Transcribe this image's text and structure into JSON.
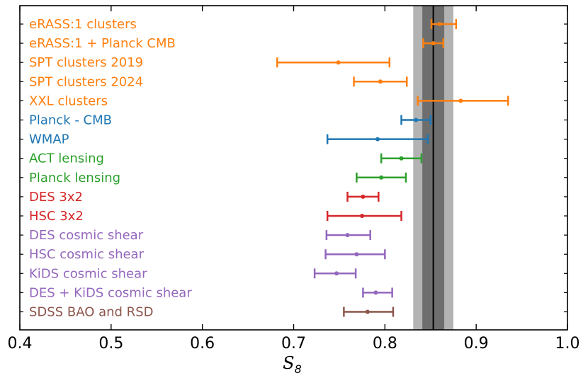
{
  "chart_data": {
    "type": "errorbar",
    "title": "",
    "xlabel": "S",
    "xlabel_subscript": "8",
    "ylabel": "",
    "xlim": [
      0.4,
      1.0
    ],
    "x_ticks": [
      "0.4",
      "0.5",
      "0.6",
      "0.7",
      "0.8",
      "0.9",
      "1.0"
    ],
    "grid": false,
    "reference_band": {
      "center": 0.853,
      "inner": [
        0.841,
        0.865
      ],
      "outer": [
        0.831,
        0.875
      ]
    },
    "colors": {
      "clusters": "#ff7f0e",
      "cmb": "#1f77b4",
      "lensing": "#2ca02c",
      "3x2": "#d62728",
      "shear": "#9467bd",
      "bao": "#8c564b",
      "band_outer": "#b3b3b3",
      "band_inner": "#6e6e6e",
      "center_line": "#000000"
    },
    "series": [
      {
        "name": "eRASS:1 clusters",
        "value": 0.86,
        "err_low": 0.009,
        "err_high": 0.018,
        "color_key": "clusters"
      },
      {
        "name": "eRASS:1 + Planck CMB",
        "value": 0.853,
        "err_low": 0.011,
        "err_high": 0.011,
        "color_key": "clusters"
      },
      {
        "name": "SPT clusters 2019",
        "value": 0.749,
        "err_low": 0.067,
        "err_high": 0.056,
        "color_key": "clusters"
      },
      {
        "name": "SPT clusters 2024",
        "value": 0.795,
        "err_low": 0.029,
        "err_high": 0.029,
        "color_key": "clusters"
      },
      {
        "name": "XXL clusters",
        "value": 0.883,
        "err_low": 0.047,
        "err_high": 0.052,
        "color_key": "clusters"
      },
      {
        "name": "Planck - CMB",
        "value": 0.834,
        "err_low": 0.016,
        "err_high": 0.016,
        "color_key": "cmb"
      },
      {
        "name": "WMAP",
        "value": 0.792,
        "err_low": 0.055,
        "err_high": 0.055,
        "color_key": "cmb"
      },
      {
        "name": "ACT lensing",
        "value": 0.818,
        "err_low": 0.022,
        "err_high": 0.022,
        "color_key": "lensing"
      },
      {
        "name": "Planck lensing",
        "value": 0.796,
        "err_low": 0.027,
        "err_high": 0.027,
        "color_key": "lensing"
      },
      {
        "name": "DES 3x2",
        "value": 0.776,
        "err_low": 0.017,
        "err_high": 0.017,
        "color_key": "3x2"
      },
      {
        "name": "HSC 3x2",
        "value": 0.775,
        "err_low": 0.038,
        "err_high": 0.043,
        "color_key": "3x2"
      },
      {
        "name": "DES cosmic shear",
        "value": 0.759,
        "err_low": 0.023,
        "err_high": 0.025,
        "color_key": "shear"
      },
      {
        "name": "HSC cosmic shear",
        "value": 0.769,
        "err_low": 0.034,
        "err_high": 0.031,
        "color_key": "shear"
      },
      {
        "name": "KiDS cosmic shear",
        "value": 0.747,
        "err_low": 0.024,
        "err_high": 0.021,
        "color_key": "shear"
      },
      {
        "name": "DES + KiDS cosmic shear",
        "value": 0.79,
        "err_low": 0.014,
        "err_high": 0.018,
        "color_key": "shear"
      },
      {
        "name": "SDSS BAO and RSD",
        "value": 0.781,
        "err_low": 0.026,
        "err_high": 0.028,
        "color_key": "bao"
      }
    ]
  }
}
